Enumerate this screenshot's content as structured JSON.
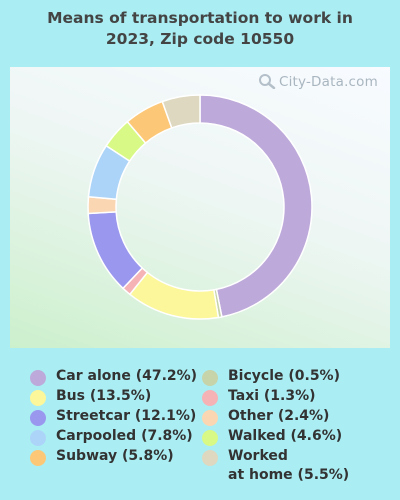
{
  "title_line1": "Means of transportation to work in",
  "title_line2": "2023, Zip code 10550",
  "watermark": "City-Data.com",
  "chart_data": {
    "type": "pie",
    "donut": true,
    "title": "Means of transportation to work in 2023, Zip code 10550",
    "slices": [
      {
        "label": "Car alone",
        "legend": "Car alone (47.2%)",
        "value": 47.2,
        "color": "#bda9da"
      },
      {
        "label": "Bicycle",
        "legend": "Bicycle (0.5%)",
        "value": 0.5,
        "color": "#c7d3a8"
      },
      {
        "label": "Bus",
        "legend": "Bus (13.5%)",
        "value": 13.5,
        "color": "#fbf79a"
      },
      {
        "label": "Taxi",
        "legend": "Taxi (1.3%)",
        "value": 1.3,
        "color": "#f5b3b6"
      },
      {
        "label": "Streetcar",
        "legend": "Streetcar (12.1%)",
        "value": 12.1,
        "color": "#9a97ef"
      },
      {
        "label": "Other",
        "legend": "Other (2.4%)",
        "value": 2.4,
        "color": "#fbd6b2"
      },
      {
        "label": "Carpooled",
        "legend": "Carpooled (7.8%)",
        "value": 7.8,
        "color": "#acd4f8"
      },
      {
        "label": "Walked",
        "legend": "Walked (4.6%)",
        "value": 4.6,
        "color": "#d9f986"
      },
      {
        "label": "Subway",
        "legend": "Subway (5.8%)",
        "value": 5.8,
        "color": "#fcc878"
      },
      {
        "label": "Worked at home",
        "legend": "Worked at home (5.5%)",
        "legend_line1": "Worked",
        "legend_line2": "at home (5.5%)",
        "value": 5.5,
        "color": "#ddd8bf"
      }
    ],
    "legend": {
      "left": [
        "Car alone (47.2%)",
        "Bus (13.5%)",
        "Streetcar (12.1%)",
        "Carpooled (7.8%)",
        "Subway (5.8%)"
      ],
      "right": [
        "Bicycle (0.5%)",
        "Taxi (1.3%)",
        "Other (2.4%)",
        "Walked (4.6%)",
        "Worked at home (5.5%)"
      ]
    }
  }
}
